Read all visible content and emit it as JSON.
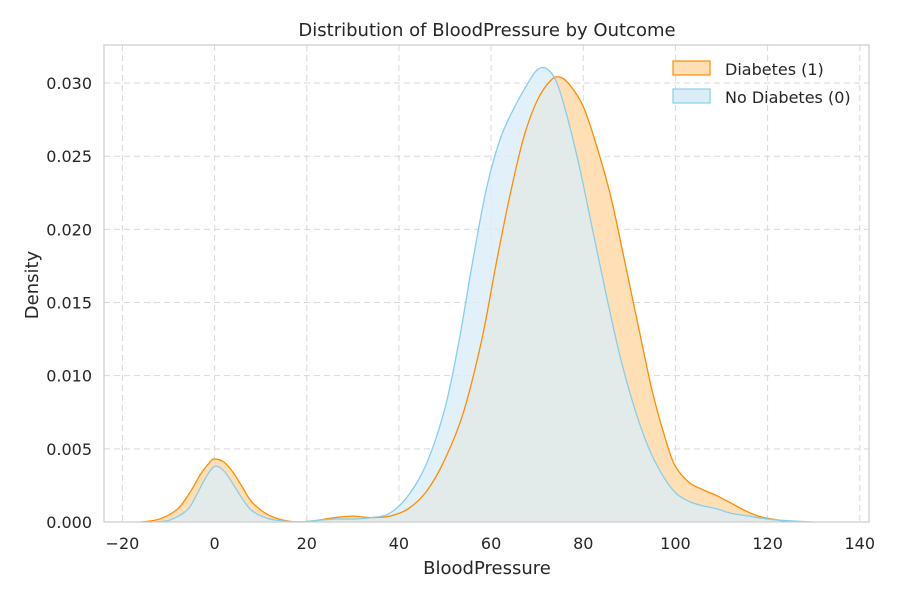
{
  "chart_data": {
    "type": "area",
    "title": "Distribution of BloodPressure by Outcome",
    "xlabel": "BloodPressure",
    "ylabel": "Density",
    "xlim": [
      -24,
      142
    ],
    "ylim": [
      0,
      0.0326
    ],
    "xticks": [
      -20,
      0,
      20,
      40,
      60,
      80,
      100,
      120,
      140
    ],
    "xtick_labels": [
      "−20",
      "0",
      "20",
      "40",
      "60",
      "80",
      "100",
      "120",
      "140"
    ],
    "yticks": [
      0.0,
      0.005,
      0.01,
      0.015,
      0.02,
      0.025,
      0.03
    ],
    "ytick_labels": [
      "0.000",
      "0.005",
      "0.010",
      "0.015",
      "0.020",
      "0.025",
      "0.030"
    ],
    "grid": true,
    "legend_position": "top-right",
    "series": [
      {
        "name": "Diabetes (1)",
        "line_color": "#ff8c00",
        "fill_color": "#ffdfb5",
        "points": [
          [
            -16,
            0.0
          ],
          [
            -12,
            0.0002
          ],
          [
            -8,
            0.0009
          ],
          [
            -5,
            0.0022
          ],
          [
            -3,
            0.0033
          ],
          [
            -1,
            0.0041
          ],
          [
            0,
            0.0043
          ],
          [
            2,
            0.0041
          ],
          [
            4,
            0.0034
          ],
          [
            6,
            0.0024
          ],
          [
            8,
            0.0014
          ],
          [
            11,
            0.0006
          ],
          [
            14,
            0.0002
          ],
          [
            18,
            0.0
          ],
          [
            22,
            0.0001
          ],
          [
            26,
            0.0003
          ],
          [
            30,
            0.0004
          ],
          [
            34,
            0.0003
          ],
          [
            38,
            0.0004
          ],
          [
            42,
            0.0009
          ],
          [
            46,
            0.0021
          ],
          [
            50,
            0.0043
          ],
          [
            54,
            0.0075
          ],
          [
            58,
            0.0125
          ],
          [
            61,
            0.0175
          ],
          [
            64,
            0.0222
          ],
          [
            67,
            0.0262
          ],
          [
            70,
            0.0288
          ],
          [
            73,
            0.0302
          ],
          [
            75,
            0.0304
          ],
          [
            77,
            0.0299
          ],
          [
            80,
            0.0284
          ],
          [
            83,
            0.0256
          ],
          [
            86,
            0.0222
          ],
          [
            89,
            0.0178
          ],
          [
            92,
            0.0133
          ],
          [
            95,
            0.0089
          ],
          [
            98,
            0.0055
          ],
          [
            100,
            0.0038
          ],
          [
            103,
            0.0027
          ],
          [
            106,
            0.0022
          ],
          [
            109,
            0.0018
          ],
          [
            112,
            0.0013
          ],
          [
            115,
            0.0008
          ],
          [
            118,
            0.0004
          ],
          [
            121,
            0.0002
          ],
          [
            125,
            0.0
          ]
        ]
      },
      {
        "name": "No Diabetes (0)",
        "line_color": "#87ceeb",
        "fill_color": "#dbeef7",
        "points": [
          [
            -14,
            0.0
          ],
          [
            -10,
            0.0001
          ],
          [
            -6,
            0.0008
          ],
          [
            -4,
            0.0018
          ],
          [
            -2,
            0.003
          ],
          [
            0,
            0.0038
          ],
          [
            2,
            0.0035
          ],
          [
            4,
            0.0026
          ],
          [
            6,
            0.0016
          ],
          [
            8,
            0.0008
          ],
          [
            11,
            0.0003
          ],
          [
            14,
            0.0001
          ],
          [
            18,
            0.0
          ],
          [
            22,
            0.0001
          ],
          [
            26,
            0.0002
          ],
          [
            30,
            0.0002
          ],
          [
            34,
            0.0003
          ],
          [
            38,
            0.0006
          ],
          [
            42,
            0.0018
          ],
          [
            46,
            0.004
          ],
          [
            50,
            0.0078
          ],
          [
            53,
            0.0123
          ],
          [
            56,
            0.0178
          ],
          [
            59,
            0.0228
          ],
          [
            62,
            0.0262
          ],
          [
            65,
            0.0283
          ],
          [
            68,
            0.03
          ],
          [
            70,
            0.0309
          ],
          [
            72,
            0.031
          ],
          [
            74,
            0.0302
          ],
          [
            76,
            0.0283
          ],
          [
            79,
            0.0245
          ],
          [
            82,
            0.02
          ],
          [
            85,
            0.0155
          ],
          [
            88,
            0.0113
          ],
          [
            91,
            0.0079
          ],
          [
            94,
            0.0052
          ],
          [
            97,
            0.0033
          ],
          [
            100,
            0.002
          ],
          [
            103,
            0.0014
          ],
          [
            106,
            0.0011
          ],
          [
            109,
            0.0009
          ],
          [
            112,
            0.0006
          ],
          [
            116,
            0.0004
          ],
          [
            120,
            0.0002
          ],
          [
            124,
            0.0001
          ],
          [
            130,
            0.0
          ]
        ]
      }
    ]
  }
}
